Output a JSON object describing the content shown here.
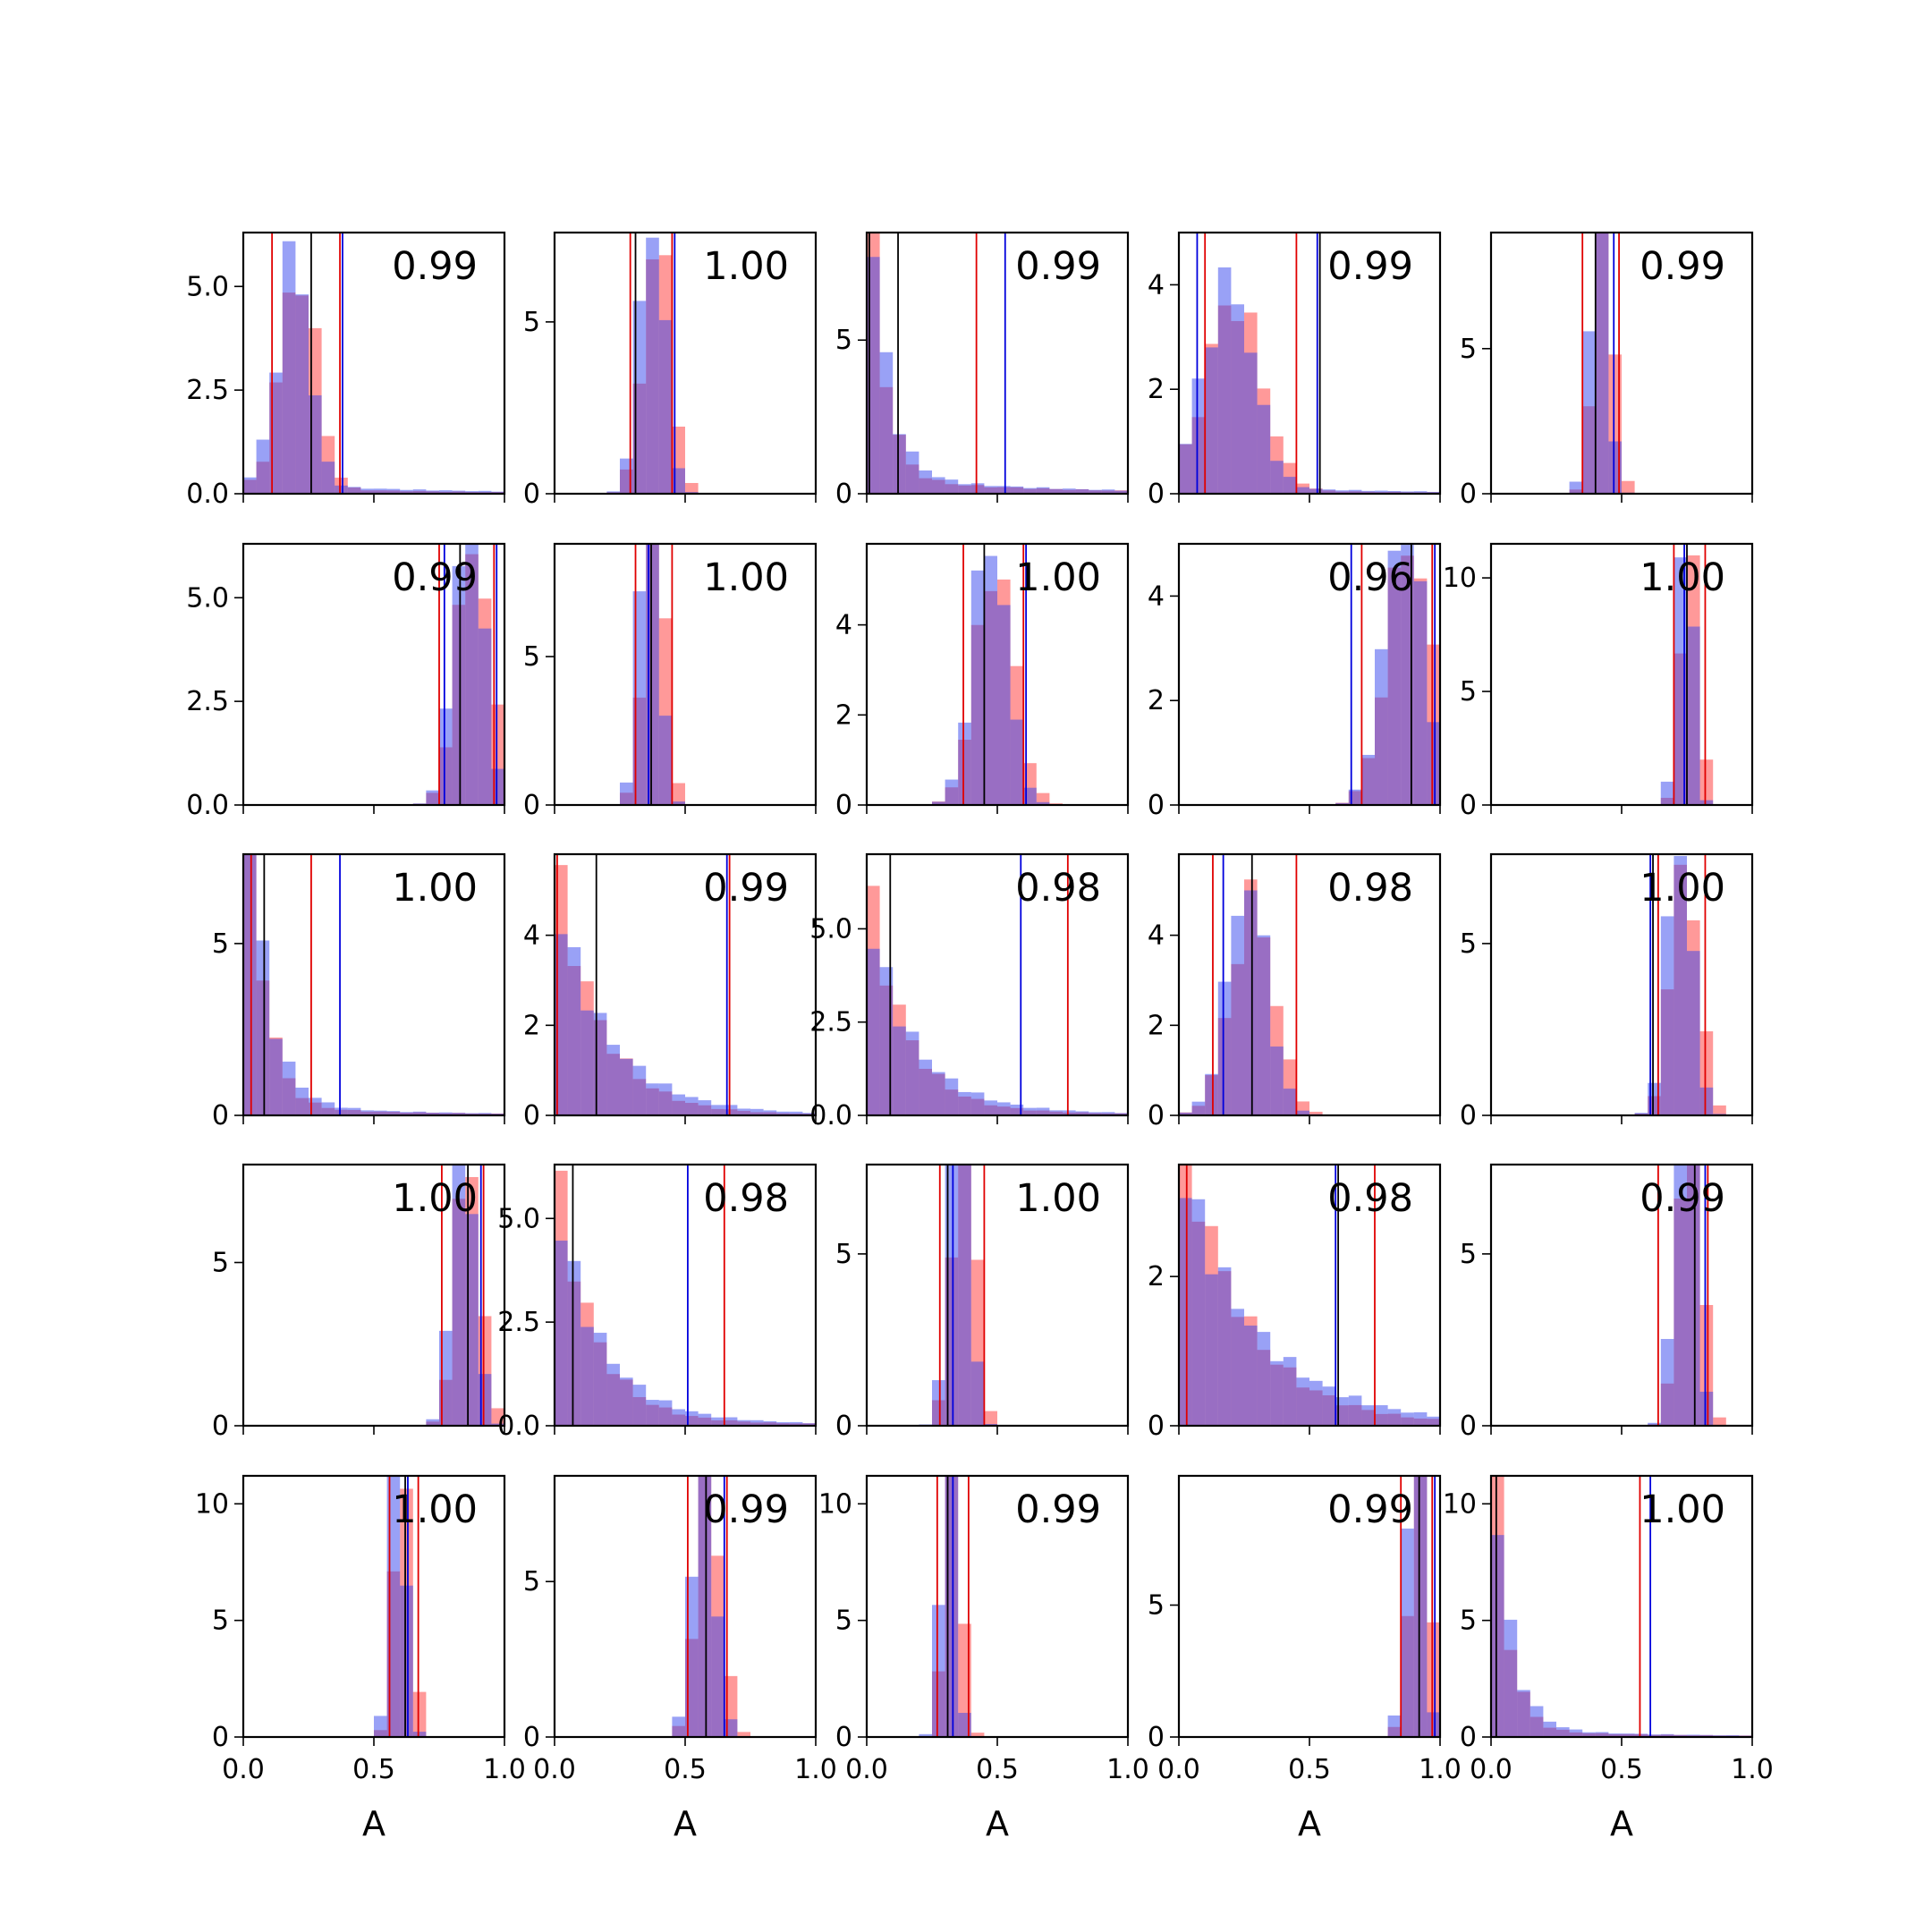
{
  "figure": {
    "background": "#ffffff"
  },
  "colors": {
    "hist_red": "#ff3333",
    "hist_blue": "#3344ee",
    "red": "#e00000",
    "blue": "#0000dd",
    "black": "#000000"
  },
  "chart_data": {
    "type": "histogram-grid",
    "rows": 5,
    "cols": 5,
    "xlabel": "A",
    "xlim": [
      0.0,
      1.0
    ],
    "x_ticks": [
      "0.0",
      "0.5",
      "1.0"
    ],
    "bins": 20,
    "panels": [
      {
        "label": "0.99",
        "ylim": [
          0,
          6.3
        ],
        "y_ticks": [
          0,
          2.5,
          5
        ],
        "y_tick_labels": [
          "0.0",
          "2.5",
          "5.0"
        ],
        "dist": {
          "type": "normal",
          "m": 0.2,
          "s": 0.065
        },
        "tail": 0.1,
        "lines": {
          "red": [
            0.11,
            0.37
          ],
          "blue": [
            0.38
          ],
          "black": [
            0.26
          ]
        }
      },
      {
        "label": "1.00",
        "ylim": [
          0,
          7.6
        ],
        "y_ticks": [
          0,
          5
        ],
        "y_tick_labels": [
          "0",
          "5"
        ],
        "dist": {
          "type": "normal",
          "m": 0.38,
          "s": 0.05
        },
        "tail": 0,
        "lines": {
          "red": [
            0.29,
            0.45
          ],
          "blue": [
            0.46
          ],
          "black": [
            0.31
          ]
        }
      },
      {
        "label": "0.99",
        "ylim": [
          0,
          8.5
        ],
        "y_ticks": [
          0,
          5
        ],
        "y_tick_labels": [
          "0",
          "5"
        ],
        "dist": {
          "type": "exp",
          "s": 0.06
        },
        "tail": 0.1,
        "lines": {
          "red": [
            0.42
          ],
          "blue": [
            0.53
          ],
          "black": [
            0.01,
            0.12
          ]
        }
      },
      {
        "label": "0.99",
        "ylim": [
          0,
          5.0
        ],
        "y_ticks": [
          0,
          2,
          4
        ],
        "y_tick_labels": [
          "0",
          "2",
          "4"
        ],
        "dist": {
          "type": "normal",
          "m": 0.2,
          "s": 0.1
        },
        "tail": 0.1,
        "lines": {
          "red": [
            0.1,
            0.45
          ],
          "blue": [
            0.07,
            0.53
          ],
          "black": [
            0.54
          ]
        }
      },
      {
        "label": "0.99",
        "ylim": [
          0,
          9.0
        ],
        "y_ticks": [
          0,
          5
        ],
        "y_tick_labels": [
          "0",
          "5"
        ],
        "dist": {
          "type": "normal",
          "m": 0.42,
          "s": 0.035
        },
        "tail": 0,
        "lines": {
          "red": [
            0.35,
            0.49
          ],
          "blue": [
            0.47
          ],
          "black": [
            0.4
          ]
        }
      },
      {
        "label": "0.99",
        "ylim": [
          0,
          6.3
        ],
        "y_ticks": [
          0,
          2.5,
          5
        ],
        "y_tick_labels": [
          "0.0",
          "2.5",
          "5.0"
        ],
        "dist": {
          "type": "normal",
          "m": 0.87,
          "s": 0.06
        },
        "tail": 0,
        "lines": {
          "red": [
            0.75,
            0.96
          ],
          "blue": [
            0.77,
            0.97
          ],
          "black": [
            0.83
          ]
        }
      },
      {
        "label": "1.00",
        "ylim": [
          0,
          8.8
        ],
        "y_ticks": [
          0,
          5
        ],
        "y_tick_labels": [
          "0",
          "5"
        ],
        "dist": {
          "type": "normal",
          "m": 0.37,
          "s": 0.04
        },
        "tail": 0,
        "lines": {
          "red": [
            0.31,
            0.45
          ],
          "blue": [
            0.36
          ],
          "black": [
            0.37
          ]
        }
      },
      {
        "label": "1.00",
        "ylim": [
          0,
          5.8
        ],
        "y_ticks": [
          0,
          2,
          4
        ],
        "y_tick_labels": [
          "0",
          "2",
          "4"
        ],
        "dist": {
          "type": "normal",
          "m": 0.48,
          "s": 0.07
        },
        "tail": 0,
        "lines": {
          "red": [
            0.37,
            0.6
          ],
          "blue": [
            0.61
          ],
          "black": [
            0.45
          ]
        }
      },
      {
        "label": "0.96",
        "ylim": [
          0,
          5.0
        ],
        "y_ticks": [
          0,
          2,
          4
        ],
        "y_tick_labels": [
          "0",
          "2",
          "4"
        ],
        "dist": {
          "type": "normal",
          "m": 0.87,
          "s": 0.08
        },
        "tail": 0,
        "lines": {
          "red": [
            0.7,
            0.97
          ],
          "blue": [
            0.66,
            0.98
          ],
          "black": [
            0.89
          ]
        }
      },
      {
        "label": "1.00",
        "ylim": [
          0,
          11.5
        ],
        "y_ticks": [
          0,
          5,
          10
        ],
        "y_tick_labels": [
          "0",
          "5",
          "10"
        ],
        "dist": {
          "type": "normal",
          "m": 0.75,
          "s": 0.03
        },
        "tail": 0,
        "lines": {
          "red": [
            0.7,
            0.82
          ],
          "blue": [
            0.74
          ],
          "black": [
            0.75
          ]
        }
      },
      {
        "label": "1.00",
        "ylim": [
          0,
          7.6
        ],
        "y_ticks": [
          0,
          5
        ],
        "y_tick_labels": [
          "0",
          "5"
        ],
        "dist": {
          "type": "exp",
          "s": 0.07
        },
        "tail": 0.05,
        "lines": {
          "red": [
            0.03,
            0.26
          ],
          "blue": [
            0.37
          ],
          "black": [
            0.08
          ]
        }
      },
      {
        "label": "0.99",
        "ylim": [
          0,
          5.8
        ],
        "y_ticks": [
          0,
          2,
          4
        ],
        "y_tick_labels": [
          "0",
          "2",
          "4"
        ],
        "dist": {
          "type": "exp",
          "s": 0.18
        },
        "tail": 0.05,
        "lines": {
          "red": [
            0.01,
            0.67
          ],
          "blue": [
            0.66
          ],
          "black": [
            0.16
          ]
        }
      },
      {
        "label": "0.98",
        "ylim": [
          0,
          7.0
        ],
        "y_ticks": [
          0,
          2.5,
          5
        ],
        "y_tick_labels": [
          "0.0",
          "2.5",
          "5.0"
        ],
        "dist": {
          "type": "exp",
          "s": 0.15
        },
        "tail": 0.1,
        "lines": {
          "red": [
            0.77
          ],
          "blue": [
            0.59
          ],
          "black": [
            0.09
          ]
        }
      },
      {
        "label": "0.98",
        "ylim": [
          0,
          5.8
        ],
        "y_ticks": [
          0,
          2,
          4
        ],
        "y_tick_labels": [
          "0",
          "2",
          "4"
        ],
        "dist": {
          "type": "normal",
          "m": 0.27,
          "s": 0.08
        },
        "tail": 0.01,
        "lines": {
          "red": [
            0.13,
            0.45
          ],
          "blue": [
            0.17
          ],
          "black": [
            0.28
          ]
        }
      },
      {
        "label": "1.00",
        "ylim": [
          0,
          7.6
        ],
        "y_ticks": [
          0,
          5
        ],
        "y_tick_labels": [
          "0",
          "5"
        ],
        "dist": {
          "type": "normal",
          "m": 0.73,
          "s": 0.05
        },
        "tail": 0,
        "lines": {
          "red": [
            0.64,
            0.82
          ],
          "blue": [
            0.61
          ],
          "black": [
            0.62
          ]
        }
      },
      {
        "label": "1.00",
        "ylim": [
          0,
          8.0
        ],
        "y_ticks": [
          0,
          5
        ],
        "y_tick_labels": [
          "0",
          "5"
        ],
        "dist": {
          "type": "normal",
          "m": 0.85,
          "s": 0.045
        },
        "tail": 0,
        "lines": {
          "red": [
            0.76,
            0.92
          ],
          "blue": [
            0.91
          ],
          "black": [
            0.86
          ]
        }
      },
      {
        "label": "0.98",
        "ylim": [
          0,
          6.3
        ],
        "y_ticks": [
          0,
          2.5,
          5
        ],
        "y_tick_labels": [
          "0.0",
          "2.5",
          "5.0"
        ],
        "dist": {
          "type": "exp",
          "s": 0.15
        },
        "tail": 0.1,
        "lines": {
          "red": [
            0.65
          ],
          "blue": [
            0.51
          ],
          "black": [
            0.07
          ]
        }
      },
      {
        "label": "1.00",
        "ylim": [
          0,
          7.6
        ],
        "y_ticks": [
          0,
          5
        ],
        "y_tick_labels": [
          "0",
          "5"
        ],
        "dist": {
          "type": "normal",
          "m": 0.36,
          "s": 0.04
        },
        "tail": 0,
        "lines": {
          "red": [
            0.28,
            0.45
          ],
          "blue": [
            0.33
          ],
          "black": [
            0.31
          ]
        }
      },
      {
        "label": "0.98",
        "ylim": [
          0,
          3.5
        ],
        "y_ticks": [
          0,
          2
        ],
        "y_tick_labels": [
          "0",
          "2"
        ],
        "dist": {
          "type": "exp",
          "s": 0.25
        },
        "tail": 0.1,
        "lines": {
          "red": [
            0.03,
            0.75
          ],
          "blue": [
            0.6
          ],
          "black": [
            0.61
          ]
        }
      },
      {
        "label": "0.99",
        "ylim": [
          0,
          7.6
        ],
        "y_ticks": [
          0,
          5
        ],
        "y_tick_labels": [
          "0",
          "5"
        ],
        "dist": {
          "type": "normal",
          "m": 0.75,
          "s": 0.04
        },
        "tail": 0,
        "lines": {
          "red": [
            0.64,
            0.83
          ],
          "blue": [
            0.82
          ],
          "black": [
            0.78
          ]
        }
      },
      {
        "label": "1.00",
        "ylim": [
          0,
          11.2
        ],
        "y_ticks": [
          0,
          5,
          10
        ],
        "y_tick_labels": [
          "0",
          "5",
          "10"
        ],
        "dist": {
          "type": "normal",
          "m": 0.6,
          "s": 0.03
        },
        "tail": 0,
        "lines": {
          "red": [
            0.56,
            0.67
          ],
          "blue": [
            0.63
          ],
          "black": [
            0.62
          ]
        }
      },
      {
        "label": "0.99",
        "ylim": [
          0,
          8.4
        ],
        "y_ticks": [
          0,
          5
        ],
        "y_tick_labels": [
          "0",
          "5"
        ],
        "dist": {
          "type": "normal",
          "m": 0.58,
          "s": 0.045
        },
        "tail": 0,
        "lines": {
          "red": [
            0.51,
            0.66
          ],
          "blue": [
            0.65
          ],
          "black": [
            0.58
          ]
        }
      },
      {
        "label": "0.99",
        "ylim": [
          0,
          11.2
        ],
        "y_ticks": [
          0,
          5,
          10
        ],
        "y_tick_labels": [
          "0",
          "5",
          "10"
        ],
        "dist": {
          "type": "normal",
          "m": 0.32,
          "s": 0.03
        },
        "tail": 0,
        "lines": {
          "red": [
            0.27,
            0.39
          ],
          "blue": [
            0.33
          ],
          "black": [
            0.31
          ]
        }
      },
      {
        "label": "0.99",
        "ylim": [
          0,
          9.9
        ],
        "y_ticks": [
          0,
          5
        ],
        "y_tick_labels": [
          "0",
          "5"
        ],
        "dist": {
          "type": "normal",
          "m": 0.91,
          "s": 0.035
        },
        "tail": 0,
        "lines": {
          "red": [
            0.85,
            0.97
          ],
          "blue": [
            0.98
          ],
          "black": [
            0.92
          ]
        }
      },
      {
        "label": "1.00",
        "ylim": [
          0,
          11.2
        ],
        "y_ticks": [
          0,
          5,
          10
        ],
        "y_tick_labels": [
          "0",
          "5",
          "10"
        ],
        "dist": {
          "type": "exp",
          "s": 0.06
        },
        "tail": 0.05,
        "lines": {
          "red": [
            0.57
          ],
          "blue": [
            0.61
          ],
          "black": [
            0.02
          ]
        }
      }
    ]
  }
}
